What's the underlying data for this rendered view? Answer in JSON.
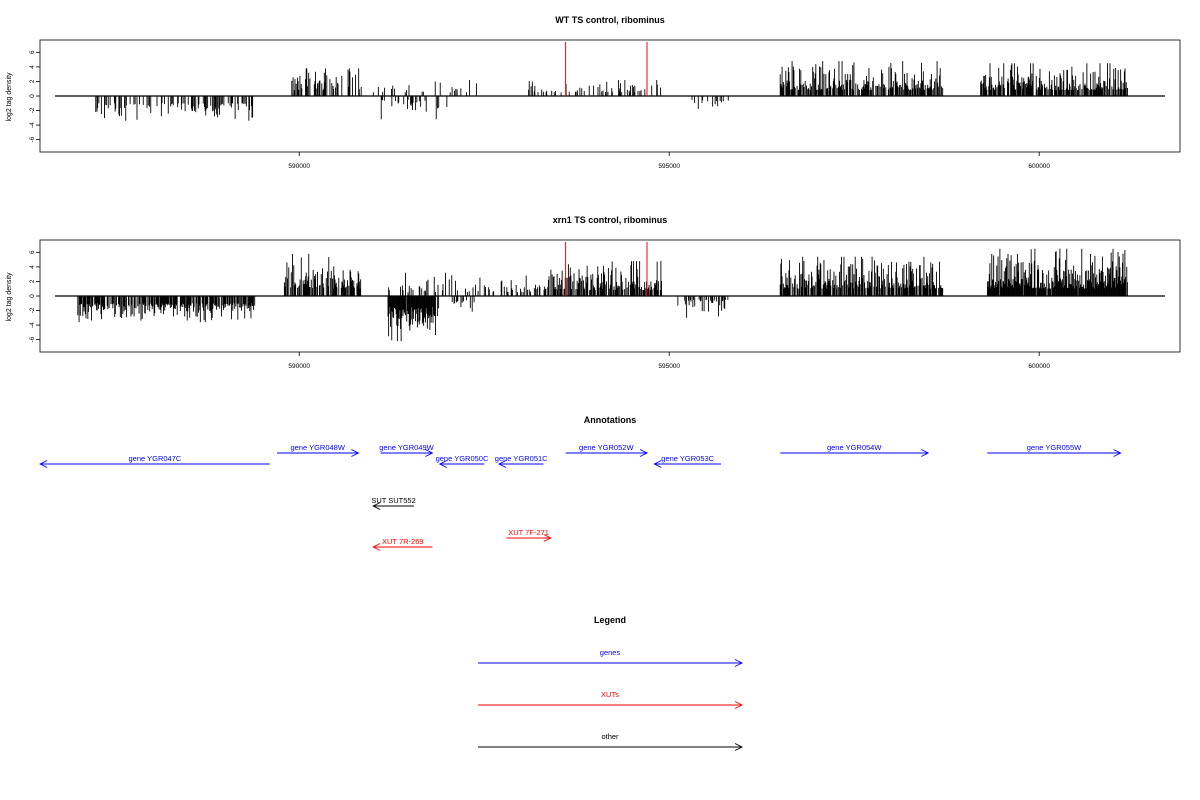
{
  "chart_data": [
    {
      "type": "bar",
      "title": "WT TS control, ribominus",
      "ylabel": "log2 tag density",
      "xlabel": "",
      "xlim": [
        586700,
        601700
      ],
      "ylim": [
        -6.6,
        6.6
      ],
      "xticks": [
        590000,
        595000,
        600000
      ],
      "yticks": [
        -6,
        -4,
        -2,
        0,
        2,
        4,
        6
      ],
      "grid": false,
      "highlight_lines": [
        {
          "x": 593600,
          "color": "#ff0000"
        },
        {
          "x": 594700,
          "color": "#ff0000"
        }
      ],
      "segments": [
        {
          "x0": 587200,
          "x1": 589400,
          "sign": -1,
          "min": 1.0,
          "max": 3.4,
          "density": 0.35,
          "color": "#000000"
        },
        {
          "x0": 589900,
          "x1": 590850,
          "sign": 1,
          "min": 0.8,
          "max": 3.8,
          "density": 0.45,
          "color": "#000000"
        },
        {
          "x0": 590850,
          "x1": 592400,
          "sign": 1,
          "min": 0.5,
          "max": 2.2,
          "density": 0.15,
          "color": "#000000"
        },
        {
          "x0": 591100,
          "x1": 592000,
          "sign": -1,
          "min": 0.5,
          "max": 3.2,
          "density": 0.2,
          "color": "#000000"
        },
        {
          "x0": 593100,
          "x1": 594900,
          "sign": 1,
          "min": 0.5,
          "max": 2.2,
          "density": 0.3,
          "color": "#000000"
        },
        {
          "x0": 595300,
          "x1": 595800,
          "sign": -1,
          "min": 0.5,
          "max": 1.8,
          "density": 0.15,
          "color": "#000000"
        },
        {
          "x0": 596500,
          "x1": 598700,
          "sign": 1,
          "min": 0.8,
          "max": 4.8,
          "density": 0.7,
          "color": "#000000"
        },
        {
          "x0": 599200,
          "x1": 601200,
          "sign": 1,
          "min": 0.8,
          "max": 4.5,
          "density": 0.8,
          "color": "#000000"
        }
      ]
    },
    {
      "type": "bar",
      "title": "xrn1 TS control, ribominus",
      "ylabel": "log2 tag density",
      "xlabel": "",
      "xlim": [
        586700,
        601700
      ],
      "ylim": [
        -6.6,
        6.6
      ],
      "xticks": [
        590000,
        595000,
        600000
      ],
      "yticks": [
        -6,
        -4,
        -2,
        0,
        2,
        4,
        6
      ],
      "grid": false,
      "highlight_lines": [
        {
          "x": 593600,
          "color": "#ff0000"
        },
        {
          "x": 594700,
          "color": "#ff0000"
        }
      ],
      "segments": [
        {
          "x0": 587000,
          "x1": 589400,
          "sign": -1,
          "min": 1.0,
          "max": 3.6,
          "density": 0.7,
          "color": "#000000"
        },
        {
          "x0": 589800,
          "x1": 590850,
          "sign": 1,
          "min": 1.0,
          "max": 5.8,
          "density": 0.7,
          "color": "#000000"
        },
        {
          "x0": 591200,
          "x1": 591900,
          "sign": -1,
          "min": 1.5,
          "max": 6.2,
          "density": 0.95,
          "color": "#000000"
        },
        {
          "x0": 591200,
          "x1": 592400,
          "sign": 1,
          "min": 0.5,
          "max": 3.2,
          "density": 0.25,
          "color": "#000000"
        },
        {
          "x0": 592000,
          "x1": 592400,
          "sign": -1,
          "min": 0.5,
          "max": 2.2,
          "density": 0.3,
          "color": "#000000"
        },
        {
          "x0": 592400,
          "x1": 593300,
          "sign": 1,
          "min": 0.5,
          "max": 3.0,
          "density": 0.25,
          "color": "#000000"
        },
        {
          "x0": 593300,
          "x1": 594900,
          "sign": 1,
          "min": 0.8,
          "max": 4.8,
          "density": 0.75,
          "color": "#000000"
        },
        {
          "x0": 595100,
          "x1": 595800,
          "sign": -1,
          "min": 0.5,
          "max": 3.0,
          "density": 0.35,
          "color": "#000000"
        },
        {
          "x0": 596500,
          "x1": 598700,
          "sign": 1,
          "min": 1.0,
          "max": 5.4,
          "density": 0.75,
          "color": "#000000"
        },
        {
          "x0": 599300,
          "x1": 601200,
          "sign": 1,
          "min": 1.0,
          "max": 6.5,
          "density": 0.95,
          "color": "#000000"
        }
      ]
    }
  ],
  "annotations": {
    "title": "Annotations",
    "items": [
      {
        "label": "gene YGR047C",
        "x0": 586500,
        "x1": 589600,
        "dir": "left",
        "row": 1,
        "color": "#0000ff"
      },
      {
        "label": "gene YGR048W",
        "x0": 589700,
        "x1": 590800,
        "dir": "right",
        "row": 0,
        "color": "#0000ff"
      },
      {
        "label": "gene YGR049W",
        "x0": 591100,
        "x1": 591800,
        "dir": "right",
        "row": 0,
        "color": "#0000ff"
      },
      {
        "label": "gene YGR050C",
        "x0": 591900,
        "x1": 592500,
        "dir": "left",
        "row": 1,
        "color": "#0000ff"
      },
      {
        "label": "gene YGR051C",
        "x0": 592700,
        "x1": 593300,
        "dir": "left",
        "row": 1,
        "color": "#0000ff"
      },
      {
        "label": "gene YGR052W",
        "x0": 593600,
        "x1": 594700,
        "dir": "right",
        "row": 0,
        "color": "#0000ff"
      },
      {
        "label": "gene YGR053C",
        "x0": 594800,
        "x1": 595700,
        "dir": "left",
        "row": 1,
        "color": "#0000ff"
      },
      {
        "label": "gene YGR054W",
        "x0": 596500,
        "x1": 598500,
        "dir": "right",
        "row": 0,
        "color": "#0000ff"
      },
      {
        "label": "gene YGR055W",
        "x0": 599300,
        "x1": 601100,
        "dir": "right",
        "row": 0,
        "color": "#0000ff"
      },
      {
        "label": "SUT SUT552",
        "x0": 591000,
        "x1": 591550,
        "dir": "left",
        "row": 2,
        "color": "#000000"
      },
      {
        "label": "XUT 7F-271",
        "x0": 592800,
        "x1": 593400,
        "dir": "right",
        "row": 3,
        "color": "#ff0000"
      },
      {
        "label": "XUT 7R-269",
        "x0": 591000,
        "x1": 591800,
        "dir": "left",
        "row": 4,
        "color": "#ff0000"
      }
    ]
  },
  "legend": {
    "title": "Legend",
    "items": [
      {
        "label": "genes",
        "color": "#0000ff"
      },
      {
        "label": "XUTs",
        "color": "#ff0000"
      },
      {
        "label": "other",
        "color": "#000000"
      }
    ]
  }
}
